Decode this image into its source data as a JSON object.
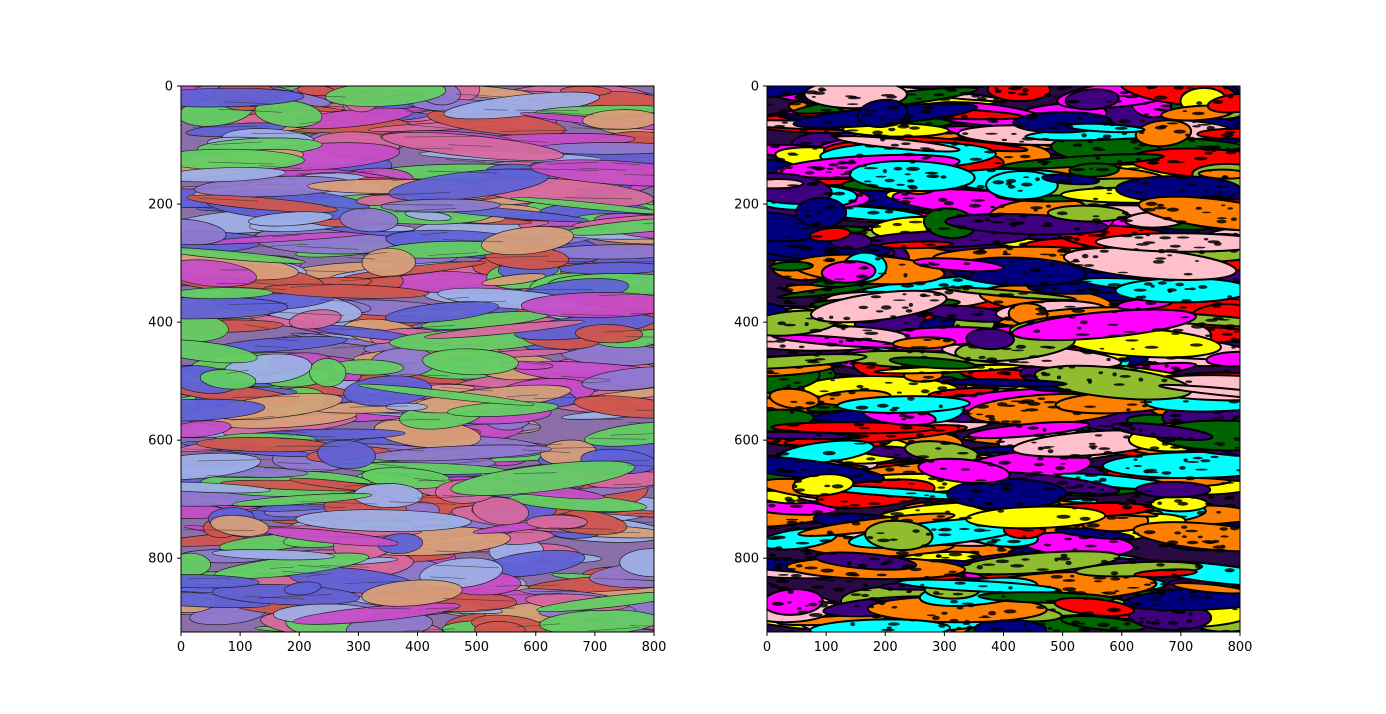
{
  "figure": {
    "panels": [
      {
        "id": "ebsd-orientation-map",
        "image_content": "orientation map with elongated grains colored red, blue, magenta, green with thin black grain boundaries",
        "palette": [
          "#d0564e",
          "#5f62d8",
          "#d76a9f",
          "#8f7ad0",
          "#63cf63",
          "#d8a07a",
          "#9fb0e8",
          "#c84dc8"
        ],
        "xaxis": {
          "min": 0,
          "max": 800,
          "ticks": [
            "0",
            "100",
            "200",
            "300",
            "400",
            "500",
            "600",
            "700",
            "800"
          ]
        },
        "yaxis": {
          "min": 0,
          "max": 925,
          "ticks": [
            "0",
            "200",
            "400",
            "600",
            "800"
          ]
        }
      },
      {
        "id": "grain-segmentation-map",
        "image_content": "segmentation map of grains in saturated label colors with black outlines",
        "palette": [
          "#ff0000",
          "#00ffff",
          "#ff00ff",
          "#ffff00",
          "#00007f",
          "#3f007f",
          "#8fbd2f",
          "#ff7f00",
          "#ffc0cb",
          "#006400"
        ],
        "xaxis": {
          "min": 0,
          "max": 800,
          "ticks": [
            "0",
            "100",
            "200",
            "300",
            "400",
            "500",
            "600",
            "700",
            "800"
          ]
        },
        "yaxis": {
          "min": 0,
          "max": 925,
          "ticks": [
            "0",
            "200",
            "400",
            "600",
            "800"
          ]
        }
      }
    ]
  }
}
